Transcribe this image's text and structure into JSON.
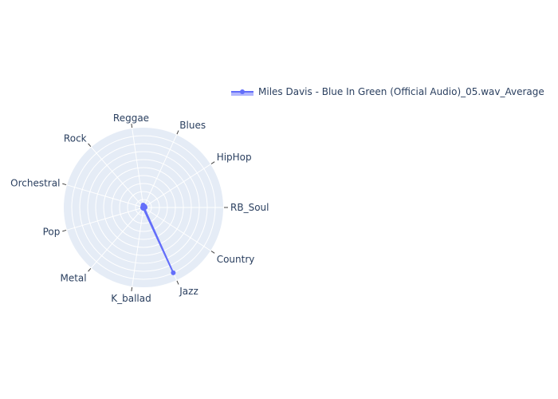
{
  "chart_data": {
    "type": "radar",
    "categories": [
      "RB_Soul",
      "Country",
      "Jazz",
      "K_ballad",
      "Metal",
      "Pop",
      "Orchestral",
      "Rock",
      "Reggae",
      "Blues",
      "HipHop"
    ],
    "series": [
      {
        "name": "Miles Davis - Blue In Green (Official Audio)_05.wav_Average",
        "values": [
          0.02,
          0.01,
          0.9,
          0.01,
          0.01,
          0.01,
          0.01,
          0.01,
          0.03,
          0.02,
          0.02
        ]
      }
    ],
    "radial_range": [
      0,
      1
    ],
    "grid": true,
    "legend_position": "top-right",
    "colors": {
      "series": "#636efa",
      "polar_bg": "#e5ecf6",
      "grid": "#ffffff",
      "text": "#2a3f5f"
    }
  }
}
